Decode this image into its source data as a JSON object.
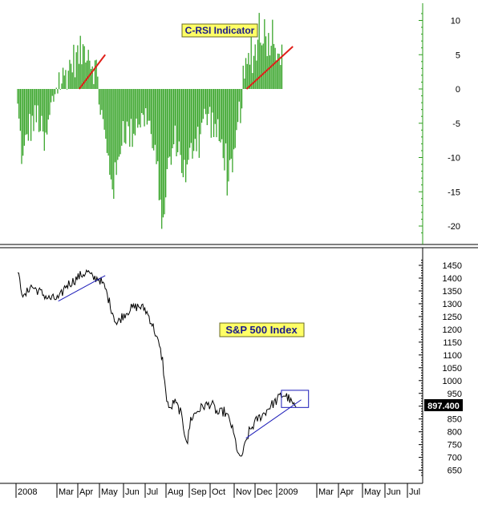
{
  "colors": {
    "histogram": "#2a9e1a",
    "trend_red": "#e0201a",
    "trend_blue": "#1a1ab8",
    "price": "#000000",
    "label_bg": "#ffff66",
    "axis": "#000000"
  },
  "chart_data": [
    {
      "type": "bar",
      "title": "C-RSI Indicator",
      "ylim": [
        -22,
        12
      ],
      "yticks": [
        10,
        5,
        0,
        -5,
        -10,
        -15,
        -20
      ],
      "ytick_labels": [
        "10",
        "5",
        "0",
        "-5",
        "-10",
        "-15",
        "-20"
      ],
      "anchors": [
        {
          "t": 0.0,
          "v": -3
        },
        {
          "t": 0.25,
          "v": -11
        },
        {
          "t": 0.5,
          "v": -6
        },
        {
          "t": 1.0,
          "v": -4
        },
        {
          "t": 1.3,
          "v": -9
        },
        {
          "t": 1.6,
          "v": -3
        },
        {
          "t": 1.85,
          "v": 0.5
        },
        {
          "t": 2.2,
          "v": 1.5
        },
        {
          "t": 2.6,
          "v": 4
        },
        {
          "t": 3.0,
          "v": 5
        },
        {
          "t": 3.35,
          "v": 6.5
        },
        {
          "t": 3.55,
          "v": 4
        },
        {
          "t": 3.8,
          "v": 2.5
        },
        {
          "t": 3.95,
          "v": -2
        },
        {
          "t": 4.3,
          "v": -10
        },
        {
          "t": 4.6,
          "v": -14
        },
        {
          "t": 4.8,
          "v": -12
        },
        {
          "t": 5.0,
          "v": -5
        },
        {
          "t": 5.4,
          "v": -7
        },
        {
          "t": 5.8,
          "v": -4
        },
        {
          "t": 6.0,
          "v": -5
        },
        {
          "t": 6.2,
          "v": -3
        },
        {
          "t": 6.5,
          "v": -9
        },
        {
          "t": 6.8,
          "v": -14
        },
        {
          "t": 6.95,
          "v": -19
        },
        {
          "t": 7.2,
          "v": -12
        },
        {
          "t": 7.6,
          "v": -7
        },
        {
          "t": 7.9,
          "v": -11
        },
        {
          "t": 8.1,
          "v": -13
        },
        {
          "t": 8.4,
          "v": -8
        },
        {
          "t": 8.8,
          "v": -5
        },
        {
          "t": 9.2,
          "v": -4
        },
        {
          "t": 9.6,
          "v": -7
        },
        {
          "t": 10.0,
          "v": -10
        },
        {
          "t": 10.3,
          "v": -13.5
        },
        {
          "t": 10.55,
          "v": -6
        },
        {
          "t": 10.8,
          "v": 0.5
        },
        {
          "t": 11.1,
          "v": 4
        },
        {
          "t": 11.45,
          "v": 6
        },
        {
          "t": 11.75,
          "v": 9
        },
        {
          "t": 12.0,
          "v": 7
        },
        {
          "t": 12.25,
          "v": 8.5
        },
        {
          "t": 12.5,
          "v": 6
        },
        {
          "t": 12.7,
          "v": 4
        }
      ],
      "trendlines": [
        {
          "color": "red",
          "from": {
            "t": 2.95,
            "v": 0
          },
          "to": {
            "t": 4.2,
            "v": 5
          }
        },
        {
          "color": "red",
          "from": {
            "t": 10.98,
            "v": 0
          },
          "to": {
            "t": 13.2,
            "v": 6.2
          }
        }
      ]
    },
    {
      "type": "line",
      "title": "S&P 500 Index",
      "ylim": [
        620,
        1480
      ],
      "yticks": [
        1450,
        1400,
        1350,
        1300,
        1250,
        1200,
        1150,
        1100,
        1050,
        1000,
        950,
        900,
        850,
        800,
        750,
        700,
        650
      ],
      "ytick_labels": [
        "1450",
        "1400",
        "1350",
        "1300",
        "1250",
        "1200",
        "1150",
        "1100",
        "1050",
        "1000",
        "950",
        "900",
        "850",
        "800",
        "750",
        "700",
        "650"
      ],
      "last_value_label": "897.400",
      "last_value": 897.4,
      "anchors": [
        {
          "t": 0.0,
          "v": 1420
        },
        {
          "t": 0.3,
          "v": 1320
        },
        {
          "t": 0.6,
          "v": 1370
        },
        {
          "t": 1.0,
          "v": 1350
        },
        {
          "t": 1.5,
          "v": 1320
        },
        {
          "t": 2.0,
          "v": 1320
        },
        {
          "t": 2.3,
          "v": 1370
        },
        {
          "t": 2.7,
          "v": 1390
        },
        {
          "t": 3.0,
          "v": 1410
        },
        {
          "t": 3.35,
          "v": 1425
        },
        {
          "t": 3.6,
          "v": 1400
        },
        {
          "t": 3.9,
          "v": 1400
        },
        {
          "t": 4.2,
          "v": 1360
        },
        {
          "t": 4.5,
          "v": 1280
        },
        {
          "t": 4.75,
          "v": 1220
        },
        {
          "t": 5.0,
          "v": 1250
        },
        {
          "t": 5.4,
          "v": 1280
        },
        {
          "t": 5.8,
          "v": 1290
        },
        {
          "t": 6.1,
          "v": 1280
        },
        {
          "t": 6.3,
          "v": 1250
        },
        {
          "t": 6.55,
          "v": 1200
        },
        {
          "t": 6.8,
          "v": 1130
        },
        {
          "t": 6.95,
          "v": 1080
        },
        {
          "t": 7.1,
          "v": 950
        },
        {
          "t": 7.3,
          "v": 880
        },
        {
          "t": 7.5,
          "v": 920
        },
        {
          "t": 7.8,
          "v": 880
        },
        {
          "t": 8.0,
          "v": 800
        },
        {
          "t": 8.15,
          "v": 760
        },
        {
          "t": 8.3,
          "v": 850
        },
        {
          "t": 8.6,
          "v": 880
        },
        {
          "t": 8.9,
          "v": 900
        },
        {
          "t": 9.3,
          "v": 910
        },
        {
          "t": 9.6,
          "v": 870
        },
        {
          "t": 9.9,
          "v": 880
        },
        {
          "t": 10.2,
          "v": 840
        },
        {
          "t": 10.45,
          "v": 760
        },
        {
          "t": 10.65,
          "v": 690
        },
        {
          "t": 10.85,
          "v": 730
        },
        {
          "t": 11.1,
          "v": 800
        },
        {
          "t": 11.5,
          "v": 850
        },
        {
          "t": 11.8,
          "v": 870
        },
        {
          "t": 12.1,
          "v": 900
        },
        {
          "t": 12.4,
          "v": 920
        },
        {
          "t": 12.6,
          "v": 940
        },
        {
          "t": 12.8,
          "v": 945
        },
        {
          "t": 13.0,
          "v": 930
        },
        {
          "t": 13.15,
          "v": 910
        },
        {
          "t": 13.35,
          "v": 897
        }
      ],
      "trendlines": [
        {
          "color": "blue",
          "from": {
            "t": 1.95,
            "v": 1310
          },
          "to": {
            "t": 4.2,
            "v": 1410
          }
        },
        {
          "color": "blue",
          "from": {
            "t": 10.95,
            "v": 775
          },
          "to": {
            "t": 13.6,
            "v": 925
          }
        }
      ],
      "box": {
        "t0": 12.65,
        "t1": 13.95,
        "v0": 895,
        "v1": 962
      }
    }
  ],
  "x_axis": {
    "labels": [
      "2008",
      "Mar",
      "Apr",
      "May",
      "Jun",
      "Jul",
      "Aug",
      "Sep",
      "Oct",
      "Nov",
      "Dec",
      "2009",
      "Mar",
      "Apr",
      "May",
      "Jun",
      "Jul"
    ],
    "positions": [
      0,
      2,
      3,
      4,
      5,
      6,
      7,
      8,
      9,
      10,
      11,
      12,
      14,
      15,
      16,
      17,
      18
    ]
  }
}
